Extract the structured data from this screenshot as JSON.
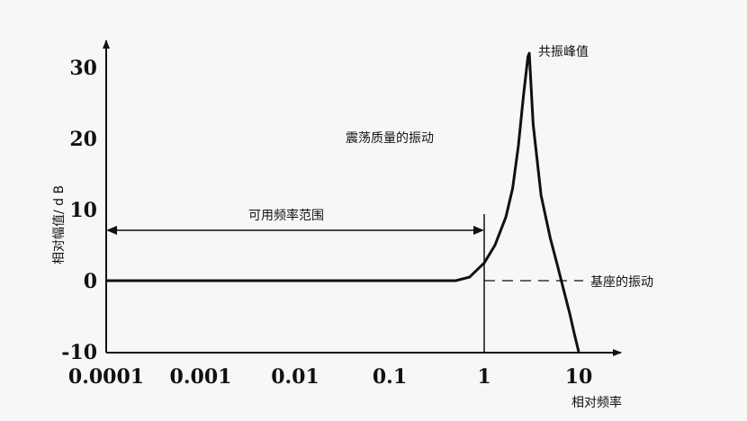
{
  "chart_data": {
    "type": "line",
    "xscale": "log",
    "xlim": [
      0.0001,
      30
    ],
    "ylim": [
      -10,
      32
    ],
    "x_ticks": [
      "0.0001",
      "0.001",
      "0.01",
      "0.1",
      "1",
      "10"
    ],
    "y_ticks": [
      "30",
      "20",
      "10",
      "0",
      "-10"
    ],
    "ylabel": "相对幅值/ d B",
    "xlabel": "相对频率",
    "series": [
      {
        "x": [
          0.0001,
          0.001,
          0.01,
          0.1,
          0.5,
          0.7,
          1.0,
          1.3,
          1.7,
          2.0,
          2.3,
          2.6,
          2.9,
          3.0,
          3.3,
          4.0,
          5.0,
          6.0,
          7.0,
          8.0,
          9.0,
          10.0
        ],
        "y": [
          0,
          0,
          0,
          0,
          0,
          0.5,
          2.5,
          5,
          9,
          13,
          19,
          26,
          31.5,
          32,
          22,
          12,
          6,
          2,
          -1.5,
          -4.5,
          -7.5,
          -10
        ]
      }
    ],
    "reference_line": {
      "y": 0,
      "from_x": 1,
      "to_x": 30,
      "style": "dashed"
    },
    "usable_range": {
      "label": "可用频率范围",
      "from_x": 0.0001,
      "to_x": 1
    },
    "annotations": {
      "peak": "共振峰值",
      "mass": "震荡质量的振动",
      "base": "基座的振动"
    }
  }
}
